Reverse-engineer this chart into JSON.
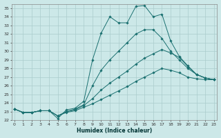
{
  "xlabel": "Humidex (Indice chaleur)",
  "xlim": [
    0,
    23
  ],
  "ylim": [
    22,
    35.5
  ],
  "yticks": [
    22,
    23,
    24,
    25,
    26,
    27,
    28,
    29,
    30,
    31,
    32,
    33,
    34,
    35
  ],
  "xticks": [
    0,
    1,
    2,
    3,
    4,
    5,
    6,
    7,
    8,
    9,
    10,
    11,
    12,
    13,
    14,
    15,
    16,
    17,
    18,
    19,
    20,
    21,
    22,
    23
  ],
  "background_color": "#cce8e8",
  "grid_color": "#aacccc",
  "line_color": "#1a7070",
  "series": [
    {
      "x": [
        0,
        1,
        2,
        3,
        4,
        5,
        6,
        7,
        8,
        9,
        10,
        11,
        12,
        13,
        14,
        15,
        16,
        17,
        18,
        19,
        20,
        21,
        22,
        23
      ],
      "y": [
        23.3,
        22.9,
        22.9,
        23.1,
        23.1,
        22.2,
        23.2,
        23.4,
        24.2,
        29.0,
        32.1,
        34.0,
        33.3,
        33.3,
        35.2,
        35.3,
        34.0,
        34.3,
        31.2,
        29.4,
        28.3,
        27.3,
        26.9,
        26.7
      ]
    },
    {
      "x": [
        0,
        1,
        2,
        3,
        4,
        5,
        6,
        7,
        8,
        9,
        10,
        11,
        12,
        13,
        14,
        15,
        16,
        17,
        18,
        19,
        20,
        21,
        22,
        23
      ],
      "y": [
        23.3,
        22.9,
        22.9,
        23.1,
        23.1,
        22.5,
        23.0,
        23.3,
        23.8,
        26.0,
        27.8,
        29.0,
        30.0,
        31.0,
        32.0,
        32.5,
        32.5,
        31.5,
        30.0,
        29.0,
        28.0,
        27.3,
        26.9,
        26.7
      ]
    },
    {
      "x": [
        0,
        1,
        2,
        3,
        4,
        5,
        6,
        7,
        8,
        9,
        10,
        11,
        12,
        13,
        14,
        15,
        16,
        17,
        18,
        19,
        20,
        21,
        22,
        23
      ],
      "y": [
        23.3,
        22.9,
        22.9,
        23.1,
        23.1,
        22.5,
        23.0,
        23.2,
        23.7,
        24.5,
        25.5,
        26.3,
        27.0,
        27.7,
        28.5,
        29.2,
        29.7,
        30.2,
        29.8,
        29.3,
        28.2,
        27.3,
        26.9,
        26.7
      ]
    },
    {
      "x": [
        0,
        1,
        2,
        3,
        4,
        5,
        6,
        7,
        8,
        9,
        10,
        11,
        12,
        13,
        14,
        15,
        16,
        17,
        18,
        19,
        20,
        21,
        22,
        23
      ],
      "y": [
        23.3,
        22.9,
        22.9,
        23.1,
        23.1,
        22.5,
        22.9,
        23.1,
        23.5,
        23.9,
        24.4,
        24.9,
        25.4,
        25.9,
        26.5,
        27.0,
        27.5,
        28.0,
        27.8,
        27.5,
        27.0,
        26.8,
        26.7,
        26.7
      ]
    }
  ]
}
